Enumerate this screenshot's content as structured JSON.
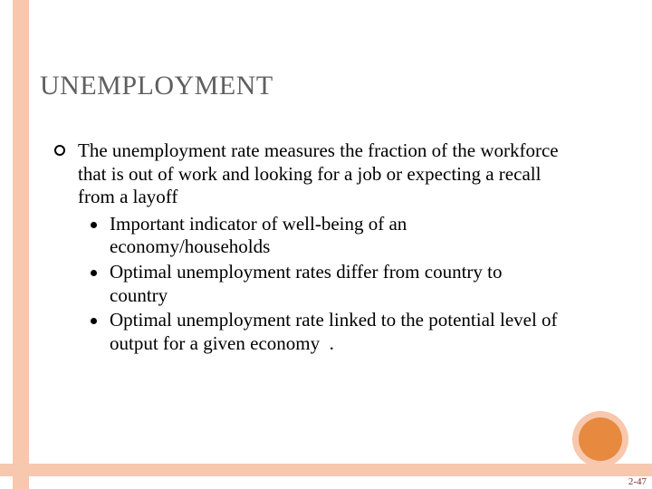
{
  "title": "UNEMPLOYMENT",
  "main_bullet": "The unemployment rate measures the fraction of the workforce that is out of work and looking for a job or expecting a recall from a layoff",
  "sub_bullets": [
    "Important indicator of well-being of an economy/households",
    "Optimal unemployment rates differ from country to country",
    "Optimal unemployment rate linked to the potential level of output for a given economy  ."
  ],
  "page_number": "2-47",
  "colors": {
    "band": "#f7c8ad",
    "circle_inner": "#e78a3f",
    "title_color": "#5f5f5f"
  }
}
